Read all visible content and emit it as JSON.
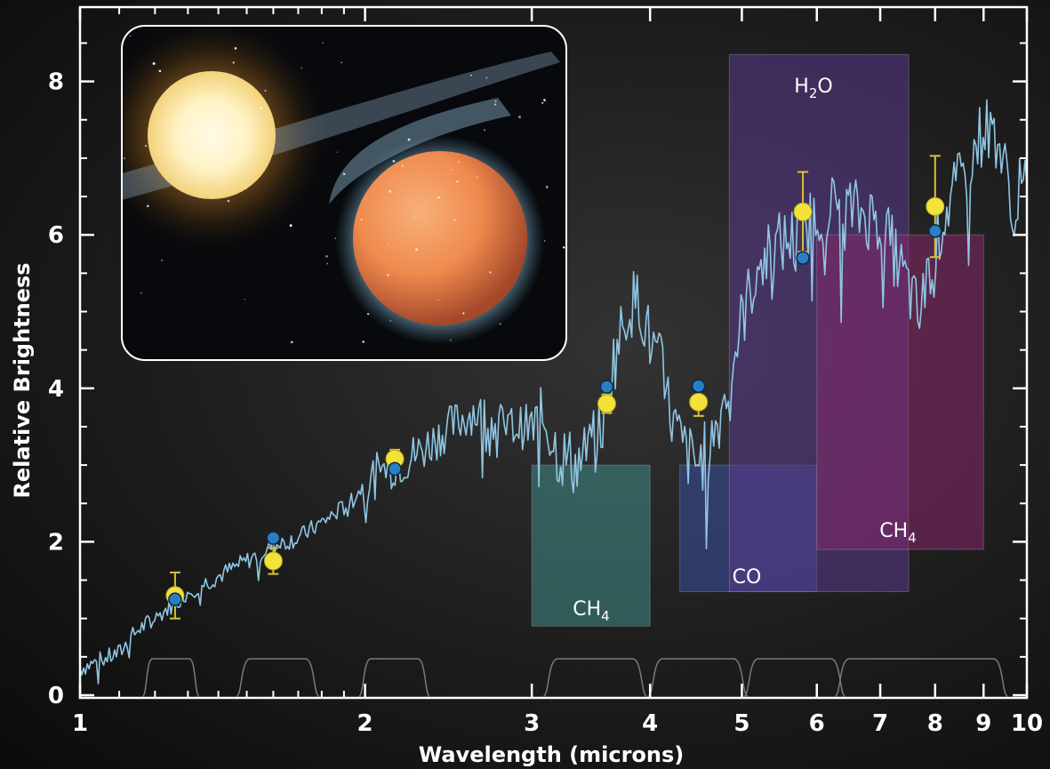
{
  "chart_data": {
    "type": "line",
    "title": "",
    "xlabel": "Wavelength (microns)",
    "ylabel": "Relative Brightness",
    "xscale": "log",
    "xlim": [
      1,
      10
    ],
    "ylim": [
      0,
      8.9
    ],
    "x_ticks": [
      1,
      2,
      3,
      4,
      5,
      6,
      7,
      8,
      9,
      10
    ],
    "y_ticks": [
      0,
      2,
      4,
      6,
      8
    ],
    "grid": false,
    "colors": {
      "spectrum": "#8fc6e4",
      "observed": "#f3e23a",
      "model": "#2a7fc4",
      "error_bar": "#d8c233",
      "filter": "#7a7a7a",
      "frame": "#ffffff"
    },
    "absorption_bands": [
      {
        "molecule": "CH",
        "subscript": "4",
        "x_range": [
          3.0,
          4.0
        ],
        "y_range": [
          0.9,
          3.0
        ],
        "color": "#3f8d86"
      },
      {
        "molecule": "CO",
        "subscript": "",
        "x_range": [
          4.3,
          6.0
        ],
        "y_range": [
          1.35,
          3.0
        ],
        "color": "#3c4fa0"
      },
      {
        "molecule": "H",
        "subscript": "2",
        "suffix": "O",
        "x_range": [
          4.85,
          7.5
        ],
        "y_range": [
          1.35,
          8.35
        ],
        "color": "#5a3a8c"
      },
      {
        "molecule": "CH",
        "subscript": "4",
        "x_range": [
          6.0,
          9.0
        ],
        "y_range": [
          1.9,
          6.0
        ],
        "color": "#85286a"
      }
    ],
    "observed_points": [
      {
        "x": 1.26,
        "y": 1.3,
        "err": 0.3
      },
      {
        "x": 1.6,
        "y": 1.75,
        "err": 0.17
      },
      {
        "x": 2.15,
        "y": 3.08,
        "err": 0.12
      },
      {
        "x": 3.6,
        "y": 3.8,
        "err": 0.12
      },
      {
        "x": 4.5,
        "y": 3.82,
        "err": 0.18
      },
      {
        "x": 5.8,
        "y": 6.3,
        "err": 0.52
      },
      {
        "x": 8.0,
        "y": 6.37,
        "err": 0.66
      }
    ],
    "model_points": [
      {
        "x": 1.26,
        "y": 1.25
      },
      {
        "x": 1.6,
        "y": 2.05
      },
      {
        "x": 2.15,
        "y": 2.95
      },
      {
        "x": 3.6,
        "y": 4.02
      },
      {
        "x": 4.5,
        "y": 4.03
      },
      {
        "x": 5.8,
        "y": 5.7
      },
      {
        "x": 8.0,
        "y": 6.05
      }
    ],
    "spectrum_anchors": [
      [
        1.0,
        0.35
      ],
      [
        1.05,
        0.45
      ],
      [
        1.1,
        0.55
      ],
      [
        1.15,
        0.85
      ],
      [
        1.2,
        1.0
      ],
      [
        1.3,
        1.35
      ],
      [
        1.4,
        1.55
      ],
      [
        1.5,
        1.75
      ],
      [
        1.6,
        1.95
      ],
      [
        1.7,
        2.05
      ],
      [
        1.8,
        2.25
      ],
      [
        1.9,
        2.45
      ],
      [
        2.0,
        2.75
      ],
      [
        2.1,
        2.95
      ],
      [
        2.2,
        3.05
      ],
      [
        2.3,
        3.2
      ],
      [
        2.4,
        3.4
      ],
      [
        2.6,
        3.7
      ],
      [
        2.8,
        3.5
      ],
      [
        3.0,
        3.5
      ],
      [
        3.1,
        3.6
      ],
      [
        3.2,
        3.15
      ],
      [
        3.35,
        3.0
      ],
      [
        3.5,
        3.3
      ],
      [
        3.6,
        3.7
      ],
      [
        3.65,
        4.3
      ],
      [
        3.8,
        5.1
      ],
      [
        3.9,
        5.15
      ],
      [
        4.0,
        4.6
      ],
      [
        4.1,
        4.3
      ],
      [
        4.2,
        3.7
      ],
      [
        4.3,
        3.3
      ],
      [
        4.4,
        3.1
      ],
      [
        4.5,
        3.0
      ],
      [
        4.6,
        3.2
      ],
      [
        4.7,
        3.5
      ],
      [
        4.85,
        4.1
      ],
      [
        5.0,
        4.9
      ],
      [
        5.2,
        5.6
      ],
      [
        5.5,
        5.9
      ],
      [
        5.8,
        6.0
      ],
      [
        6.0,
        6.3
      ],
      [
        6.3,
        6.4
      ],
      [
        6.6,
        6.3
      ],
      [
        7.0,
        6.2
      ],
      [
        7.5,
        5.3
      ],
      [
        7.7,
        4.9
      ],
      [
        7.9,
        5.6
      ],
      [
        8.2,
        6.3
      ],
      [
        8.6,
        6.8
      ],
      [
        9.0,
        7.4
      ],
      [
        9.3,
        7.3
      ],
      [
        9.6,
        6.5
      ],
      [
        10.0,
        6.6
      ]
    ],
    "filter_bands": [
      [
        1.17,
        1.33
      ],
      [
        1.47,
        1.78
      ],
      [
        1.98,
        2.33
      ],
      [
        3.1,
        3.95
      ],
      [
        4.0,
        5.05
      ],
      [
        5.05,
        6.4
      ],
      [
        6.3,
        9.5
      ]
    ],
    "inset": {
      "type": "illustration",
      "content": "star-and-planet"
    }
  }
}
